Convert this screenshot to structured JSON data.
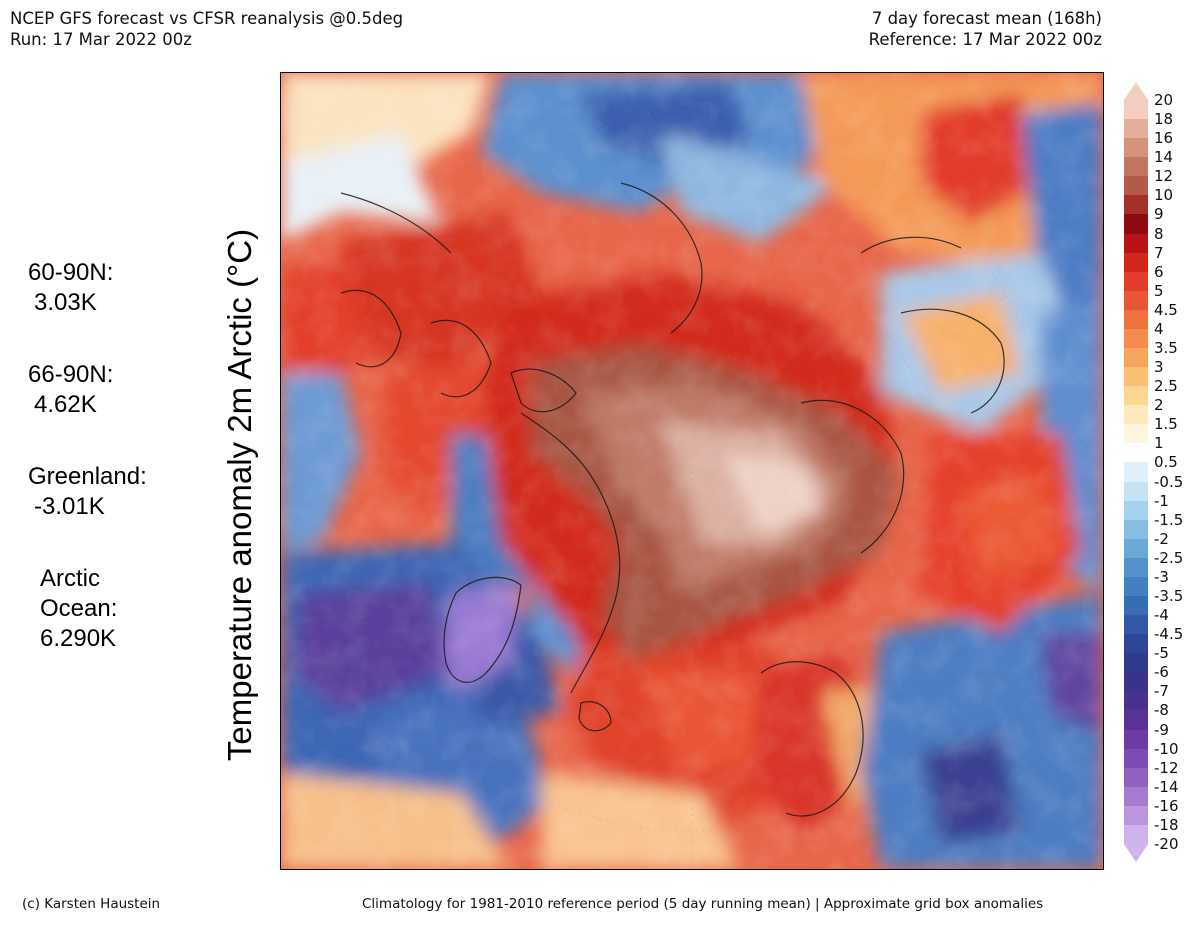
{
  "header": {
    "title": "NCEP GFS forecast vs CFSR reanalysis @0.5deg",
    "run": "Run: 17 Mar 2022 00z",
    "forecast": "7 day forecast mean (168h)",
    "reference": "Reference: 17 Mar 2022 00z"
  },
  "y_label": "Temperature anomaly 2m Arctic (°C)",
  "stats": [
    {
      "label": "60-90N:",
      "value": "3.03K"
    },
    {
      "label": "66-90N:",
      "value": "4.62K"
    },
    {
      "label": "Greenland:",
      "value": "-3.01K"
    },
    {
      "label": "Arctic\nOcean:",
      "value": "6.290K"
    }
  ],
  "colorbar": {
    "labels": [
      "20",
      "18",
      "16",
      "14",
      "12",
      "10",
      "9",
      "8",
      "7",
      "6",
      "5",
      "4.5",
      "4",
      "3.5",
      "3",
      "2.5",
      "2",
      "1.5",
      "1",
      "0.5",
      "-0.5",
      "-1",
      "-1.5",
      "-2",
      "-2.5",
      "-3",
      "-3.5",
      "-4",
      "-4.5",
      "-5",
      "-6",
      "-7",
      "-8",
      "-9",
      "-10",
      "-12",
      "-14",
      "-16",
      "-18",
      "-20"
    ],
    "colors": [
      "#f2cdc0",
      "#e4ad9c",
      "#d4917c",
      "#c47562",
      "#b45a48",
      "#a3312a",
      "#8e0a12",
      "#b81317",
      "#d3261f",
      "#e23c2c",
      "#ea5634",
      "#f07040",
      "#f48a4c",
      "#f7a45c",
      "#f9be72",
      "#fbd591",
      "#fce8b8",
      "#fdf5dc",
      "#ffffff",
      "#dff0fa",
      "#c5e3f3",
      "#a6d1ec",
      "#87bde3",
      "#6aa8d8",
      "#5393cc",
      "#4380c1",
      "#386db5",
      "#3159a7",
      "#2d4698",
      "#2f3a8d",
      "#3a338a",
      "#4a318f",
      "#5b3298",
      "#6c3ba6",
      "#7e4ab4",
      "#9160c2",
      "#a57ad0",
      "#b996dd",
      "#ceb4ea"
    ]
  },
  "footer": {
    "credit": "(c) Karsten Haustein",
    "note": "Climatology for 1981-2010 reference period (5 day running mean) | Approximate grid box anomalies"
  }
}
